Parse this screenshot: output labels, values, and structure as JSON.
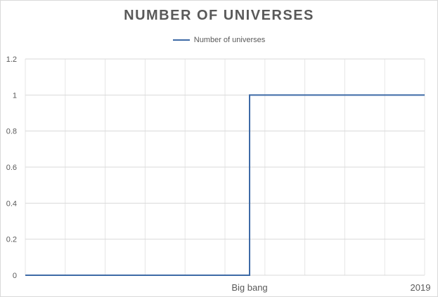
{
  "chart_data": {
    "type": "line",
    "title": "NUMBER OF UNIVERSES",
    "xlabel": "",
    "ylabel": "",
    "ylim": [
      0,
      1.2
    ],
    "yticks": [
      "0",
      "0.2",
      "0.4",
      "0.6",
      "0.8",
      "1",
      "1.2"
    ],
    "xtick_labels": [
      "Big bang",
      "2019"
    ],
    "grid": true,
    "legend": "top-center",
    "series": [
      {
        "name": "Number of universes",
        "color": "#3d6aa6",
        "points": [
          {
            "x": "before Big bang",
            "y": 0
          },
          {
            "x": "Big bang",
            "y": 0
          },
          {
            "x": "Big bang",
            "y": 1
          },
          {
            "x": "2019",
            "y": 1
          }
        ]
      }
    ]
  }
}
